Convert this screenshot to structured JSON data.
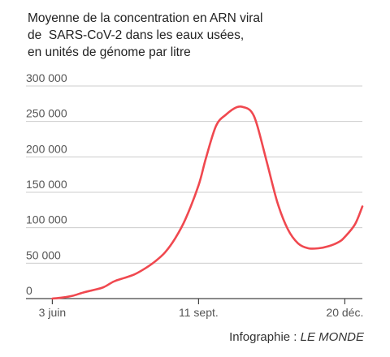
{
  "title_lines": [
    "Moyenne de la concentration en ARN viral",
    "de  SARS-CoV-2 dans les eaux usées,",
    "en unités de génome par litre"
  ],
  "credit": {
    "prefix": "Infographie : ",
    "brand": "LE MONDE"
  },
  "colors": {
    "line": "#f0484f",
    "gridline": "#cccccc",
    "axis": "#444444"
  },
  "chart_data": {
    "type": "line",
    "title": "Moyenne de la concentration en ARN viral de SARS-CoV-2 dans les eaux usées, en unités de génome par litre",
    "xlabel": "",
    "ylabel": "",
    "x_tick_labels": [
      "3 juin",
      "11 sept.",
      "20 déc."
    ],
    "y_tick_labels": [
      "0",
      "50 000",
      "100 000",
      "150 000",
      "200 000",
      "250 000",
      "300 000"
    ],
    "ylim": [
      0,
      300000
    ],
    "xlim": [
      "2022-05-16",
      "2023-01-01"
    ],
    "grid": true,
    "series": [
      {
        "x": [
          "2022-06-03",
          "2022-06-10",
          "2022-06-17",
          "2022-06-24",
          "2022-07-01",
          "2022-07-08",
          "2022-07-15",
          "2022-07-22",
          "2022-07-29",
          "2022-08-05",
          "2022-08-12",
          "2022-08-19",
          "2022-08-26",
          "2022-09-02",
          "2022-09-11",
          "2022-09-16",
          "2022-09-23",
          "2022-09-30",
          "2022-10-07",
          "2022-10-12",
          "2022-10-17",
          "2022-10-21",
          "2022-10-28",
          "2022-11-04",
          "2022-11-11",
          "2022-11-18",
          "2022-11-25",
          "2022-12-02",
          "2022-12-09",
          "2022-12-16",
          "2022-12-20",
          "2022-12-27",
          "2023-01-01"
        ],
        "values": [
          0,
          1500,
          4000,
          8500,
          12000,
          16000,
          24000,
          29000,
          34000,
          42000,
          52000,
          65000,
          85000,
          112000,
          160000,
          198000,
          244000,
          260000,
          270000,
          270000,
          264000,
          245000,
          190000,
          135000,
          98000,
          78000,
          71000,
          71000,
          74000,
          80000,
          87000,
          105000,
          130000
        ]
      }
    ]
  }
}
